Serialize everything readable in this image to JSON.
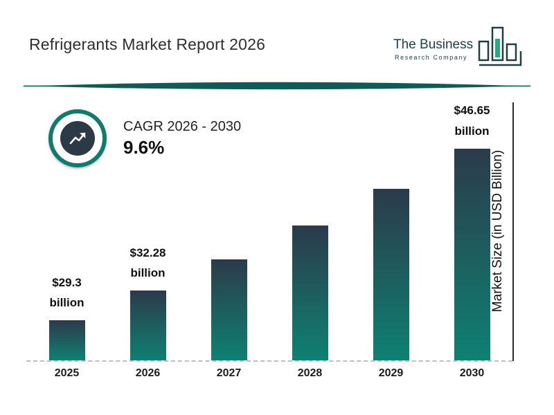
{
  "header": {
    "title": "Refrigerants Market Report 2026",
    "logo": {
      "line1": "The Business",
      "line2": "Research Company"
    }
  },
  "cagr": {
    "label": "CAGR 2026 - 2030",
    "value": "9.6%"
  },
  "colors": {
    "brand_teal": "#0d7c6e",
    "dark_navy": "#2c3a48",
    "divider_teal": "#0d5c55",
    "logo_dark": "#1d3e49",
    "logo_green": "#22ad87"
  },
  "chart_data": {
    "type": "bar",
    "categories": [
      "2025",
      "2026",
      "2027",
      "2028",
      "2029",
      "2030"
    ],
    "values": [
      29.3,
      32.28,
      35.38,
      38.78,
      42.5,
      46.65
    ],
    "unit": "USD Billion",
    "ylabel": "Market Size (in USD Billion)",
    "xlabel": "",
    "legend": false,
    "grid": false,
    "baseline_style": "dashed",
    "annotations": [
      {
        "category": "2025",
        "line1": "$29.3",
        "line2": "billion"
      },
      {
        "category": "2026",
        "line1": "$32.28",
        "line2": "billion"
      },
      {
        "category": "2030",
        "line1": "$46.65",
        "line2": "billion"
      }
    ],
    "colors": {
      "bar_gradient_top": "#2c3a4a",
      "bar_gradient_bottom": "#0e8173"
    }
  }
}
